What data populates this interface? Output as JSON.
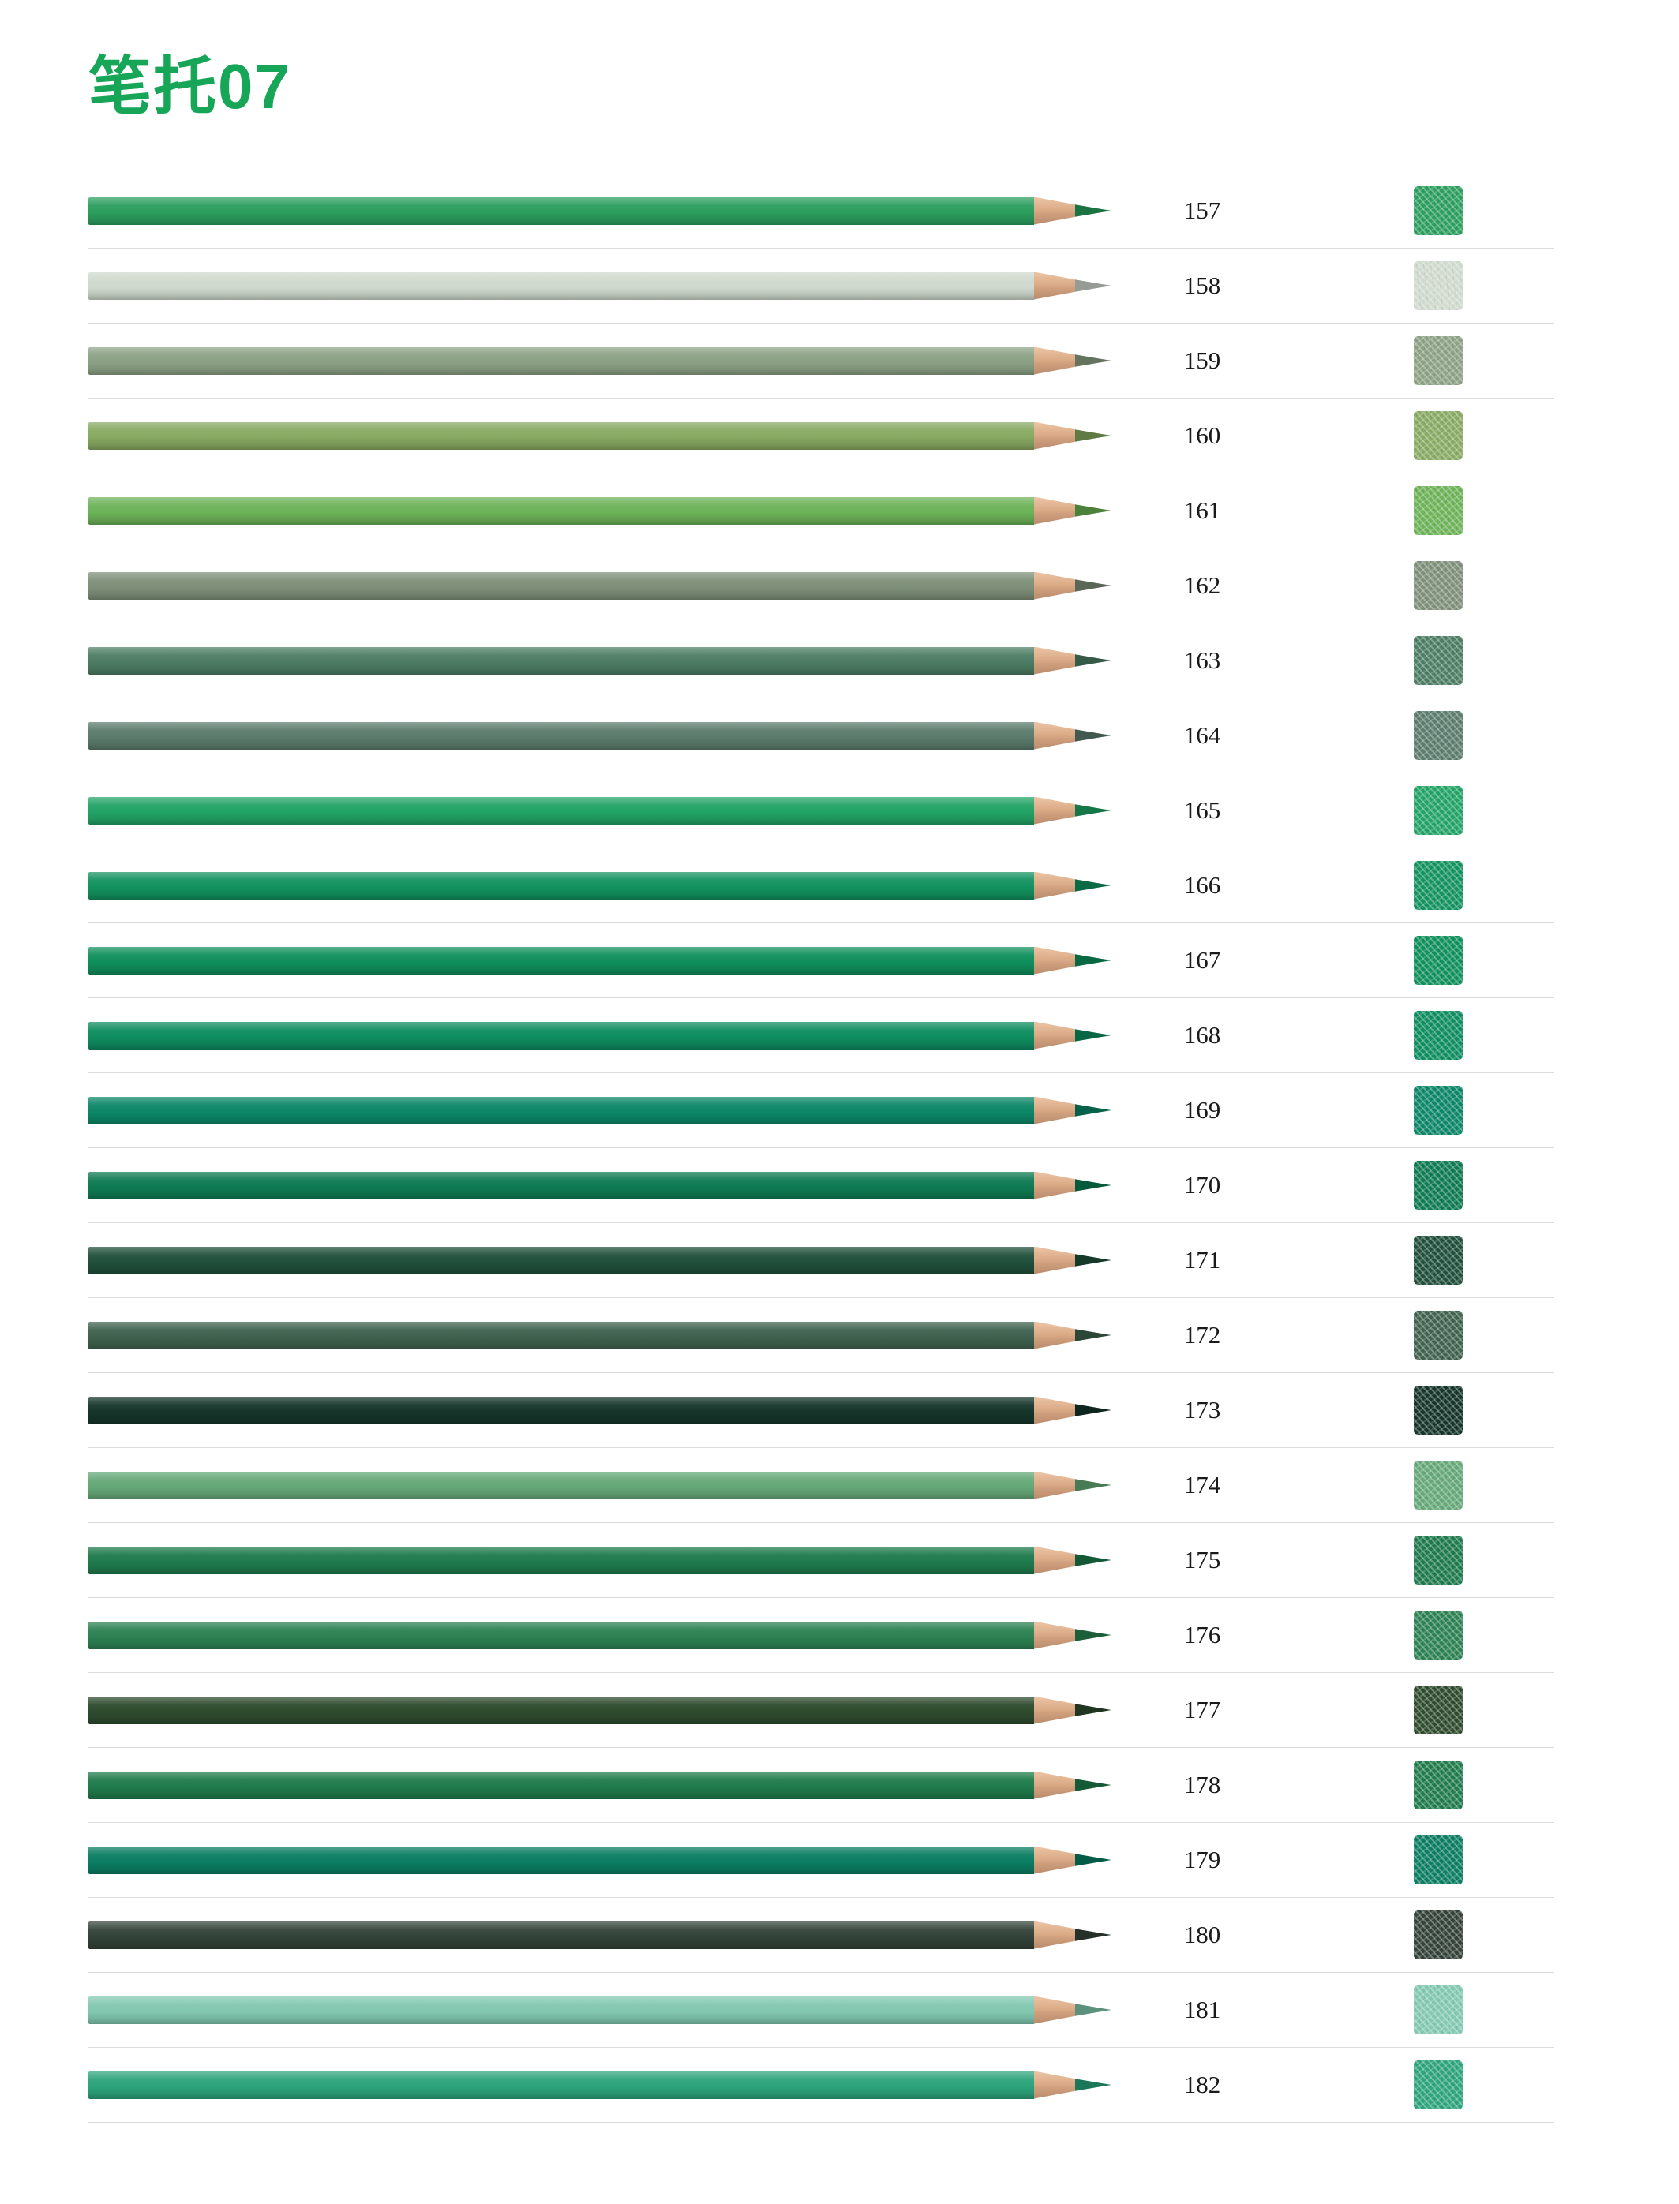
{
  "page": {
    "title": "笔托07",
    "title_color": "#17a558"
  },
  "pencils": [
    {
      "number": "157",
      "color": "#2b9e5e"
    },
    {
      "number": "158",
      "color": "#cfd9cd"
    },
    {
      "number": "159",
      "color": "#8ba184"
    },
    {
      "number": "160",
      "color": "#87a961"
    },
    {
      "number": "161",
      "color": "#6cb257"
    },
    {
      "number": "162",
      "color": "#7e8f79"
    },
    {
      "number": "163",
      "color": "#4c7c63"
    },
    {
      "number": "164",
      "color": "#5b7b6c"
    },
    {
      "number": "165",
      "color": "#22a365"
    },
    {
      "number": "166",
      "color": "#13925f"
    },
    {
      "number": "167",
      "color": "#0f8f5c"
    },
    {
      "number": "168",
      "color": "#0e8d60"
    },
    {
      "number": "169",
      "color": "#0b8667"
    },
    {
      "number": "170",
      "color": "#0d7a52"
    },
    {
      "number": "171",
      "color": "#204f3b"
    },
    {
      "number": "172",
      "color": "#3f614e"
    },
    {
      "number": "173",
      "color": "#16352a"
    },
    {
      "number": "174",
      "color": "#65a878"
    },
    {
      "number": "175",
      "color": "#1e7a4c"
    },
    {
      "number": "176",
      "color": "#2c8152"
    },
    {
      "number": "177",
      "color": "#2e4b2e"
    },
    {
      "number": "178",
      "color": "#207b4b"
    },
    {
      "number": "179",
      "color": "#0a7d62"
    },
    {
      "number": "180",
      "color": "#334238"
    },
    {
      "number": "181",
      "color": "#82c8b0"
    },
    {
      "number": "182",
      "color": "#2ca37b"
    }
  ]
}
